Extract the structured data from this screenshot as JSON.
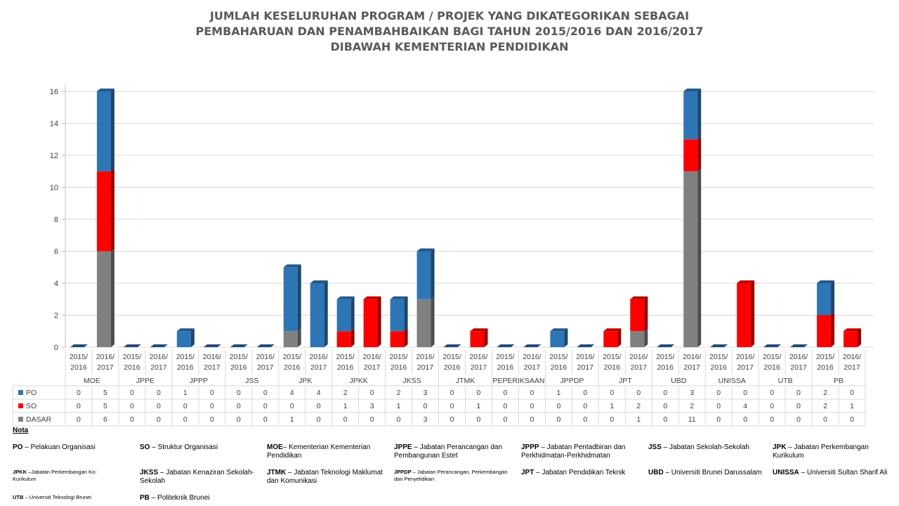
{
  "chart_data": {
    "type": "bar",
    "stacked": true,
    "title_lines": [
      "JUMLAH KESELURUHAN PROGRAM / PROJEK YANG DIKATEGORIKAN SEBAGAI",
      "PEMBAHARUAN DAN PENAMBAHBAIKAN BAGI TAHUN 2015/2016 DAN 2016/2017",
      "DIBAWAH KEMENTERIAN PENDIDIKAN"
    ],
    "groups": [
      "MOE",
      "JPPE",
      "JPPP",
      "JSS",
      "JPK",
      "JPKK",
      "JKSS",
      "JTMK",
      "PEPERIKSAAN",
      "JPPDP",
      "JPT",
      "UBD",
      "UNISSA",
      "UTB",
      "PB"
    ],
    "years": [
      [
        "2015/",
        "2016"
      ],
      [
        "2016/",
        "2017"
      ]
    ],
    "ylim": [
      0,
      16
    ],
    "yticks": [
      "0",
      "2",
      "4",
      "6",
      "8",
      "10",
      "12",
      "14",
      "16"
    ],
    "grid": true,
    "legend": "data-table",
    "series": [
      {
        "name": "PO",
        "color": "#2e75b6",
        "values": [
          0,
          5,
          0,
          0,
          1,
          0,
          0,
          0,
          4,
          4,
          2,
          0,
          2,
          3,
          0,
          0,
          0,
          0,
          1,
          0,
          0,
          0,
          0,
          3,
          0,
          0,
          0,
          0,
          2,
          0
        ]
      },
      {
        "name": "SO",
        "color": "#ff0000",
        "values": [
          0,
          5,
          0,
          0,
          0,
          0,
          0,
          0,
          0,
          0,
          1,
          3,
          1,
          0,
          0,
          1,
          0,
          0,
          0,
          0,
          1,
          2,
          0,
          2,
          0,
          4,
          0,
          0,
          2,
          1
        ]
      },
      {
        "name": "DASAR",
        "color": "#808080",
        "values": [
          0,
          6,
          0,
          0,
          0,
          0,
          0,
          0,
          1,
          0,
          0,
          0,
          0,
          3,
          0,
          0,
          0,
          0,
          0,
          0,
          0,
          1,
          0,
          11,
          0,
          0,
          0,
          0,
          0,
          0
        ]
      }
    ]
  },
  "notes": {
    "title": "Nota",
    "items": [
      {
        "abbr": "PO",
        "text": " – Pelakuan Organisasi"
      },
      {
        "abbr": "SO",
        "text": " – Struktur Organisasi"
      },
      {
        "abbr": "MOE",
        "text": "– Kementerian Kementerian Pendidikan"
      },
      {
        "abbr": "JPPE",
        "text": " – Jabatan Perancangan dan Pembangunan Estet"
      },
      {
        "abbr": "JPPP",
        "text": " – Jabatan Pentadbiran dan Perkhidmatan-Perkhidmatan"
      },
      {
        "abbr": "JSS",
        "text": " – Jabatan Sekolah-Sekolah"
      },
      {
        "abbr": "JPK",
        "text": " – Jabatan Perkembangan Kurikulum"
      },
      {
        "abbr": "JPKK",
        "text": " –Jabatan Perkembangan Ko-Kurikulum"
      },
      {
        "abbr": "JKSS",
        "text": " – Jabatan Kenaziran Sekolah-Sekolah"
      },
      {
        "abbr": "JTMK",
        "text": " – Jabatan Teknologi Maklumat dan Komunikasi"
      },
      {
        "abbr": "JPPDP",
        "text": " – Jabatan Perancangan, Perkembangan dan Penyelidikan"
      },
      {
        "abbr": "JPT",
        "text": " – Jabatan Pendidikan Teknik"
      },
      {
        "abbr": "UBD",
        "text": " – Universiti Brunei Darussalam"
      },
      {
        "abbr": "UNISSA",
        "text": " – Universiti Sultan Sharif Ali"
      },
      {
        "abbr": "UTB",
        "text": " – Universiti Teknologi Brunei"
      },
      {
        "abbr": "PB",
        "text": " – Politeknik Brunei"
      }
    ]
  }
}
